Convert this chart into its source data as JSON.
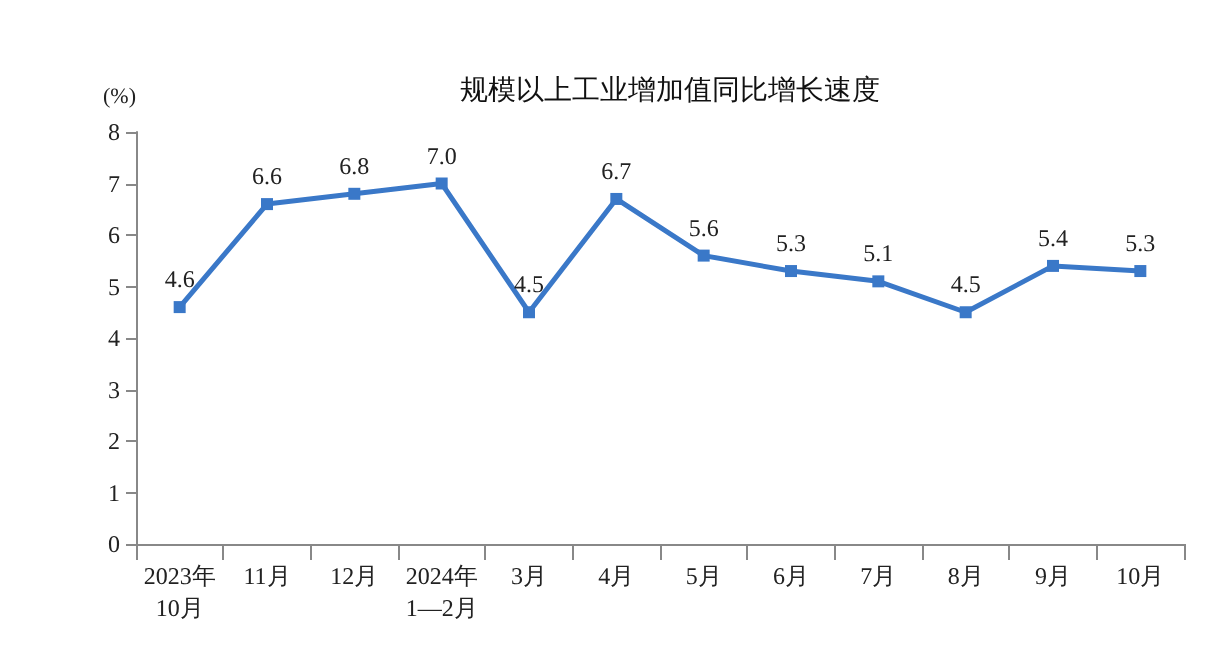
{
  "chart_data": {
    "type": "line",
    "title": "规模以上工业增加值同比增长速度",
    "ylabel": "(%)",
    "categories": [
      "2023年\n10月",
      "11月",
      "12月",
      "2024年\n1—2月",
      "3月",
      "4月",
      "5月",
      "6月",
      "7月",
      "8月",
      "9月",
      "10月"
    ],
    "series": [
      {
        "color": "#3a78c8",
        "values": [
          4.6,
          6.6,
          6.8,
          7.0,
          4.5,
          6.7,
          5.6,
          5.3,
          5.1,
          4.5,
          5.4,
          5.3
        ],
        "value_labels": [
          "4.6",
          "6.6",
          "6.8",
          "7.0",
          "4.5",
          "6.7",
          "5.6",
          "5.3",
          "5.1",
          "4.5",
          "5.4",
          "5.3"
        ]
      }
    ],
    "ylim": [
      0,
      8
    ],
    "yticks": [
      0,
      1,
      2,
      3,
      4,
      5,
      6,
      7,
      8
    ],
    "grid": false,
    "marker": "square",
    "line_style": "solid"
  }
}
